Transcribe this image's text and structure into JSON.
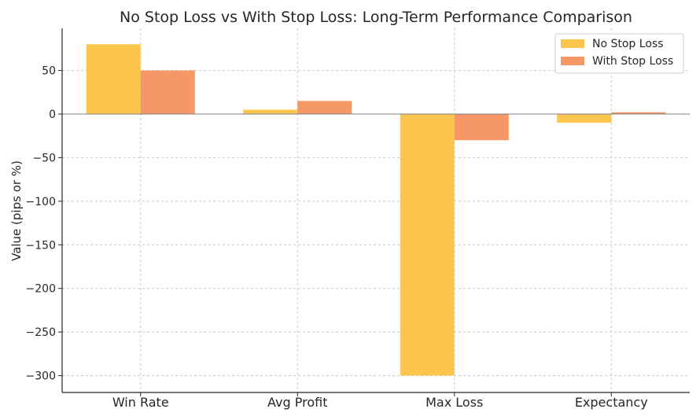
{
  "chart_data": {
    "type": "bar",
    "title": "No Stop Loss vs With Stop Loss: Long-Term Performance Comparison",
    "xlabel": "",
    "ylabel": "Value (pips or %)",
    "categories": [
      "Win Rate",
      "Avg Profit",
      "Max Loss",
      "Expectancy"
    ],
    "series": [
      {
        "name": "No Stop Loss",
        "values": [
          80,
          5,
          -300,
          -10
        ],
        "color": "#fcc54d"
      },
      {
        "name": "With Stop Loss",
        "values": [
          50,
          15,
          -30,
          2
        ],
        "color": "#f59866"
      }
    ],
    "ylim": [
      -320,
      97
    ],
    "yticks": [
      50,
      0,
      -50,
      -100,
      -150,
      -200,
      -250,
      -300
    ],
    "ytick_labels": [
      "50",
      "0",
      "−50",
      "−100",
      "−150",
      "−200",
      "−250",
      "−300"
    ],
    "grid": true,
    "legend_position": "top-right"
  }
}
